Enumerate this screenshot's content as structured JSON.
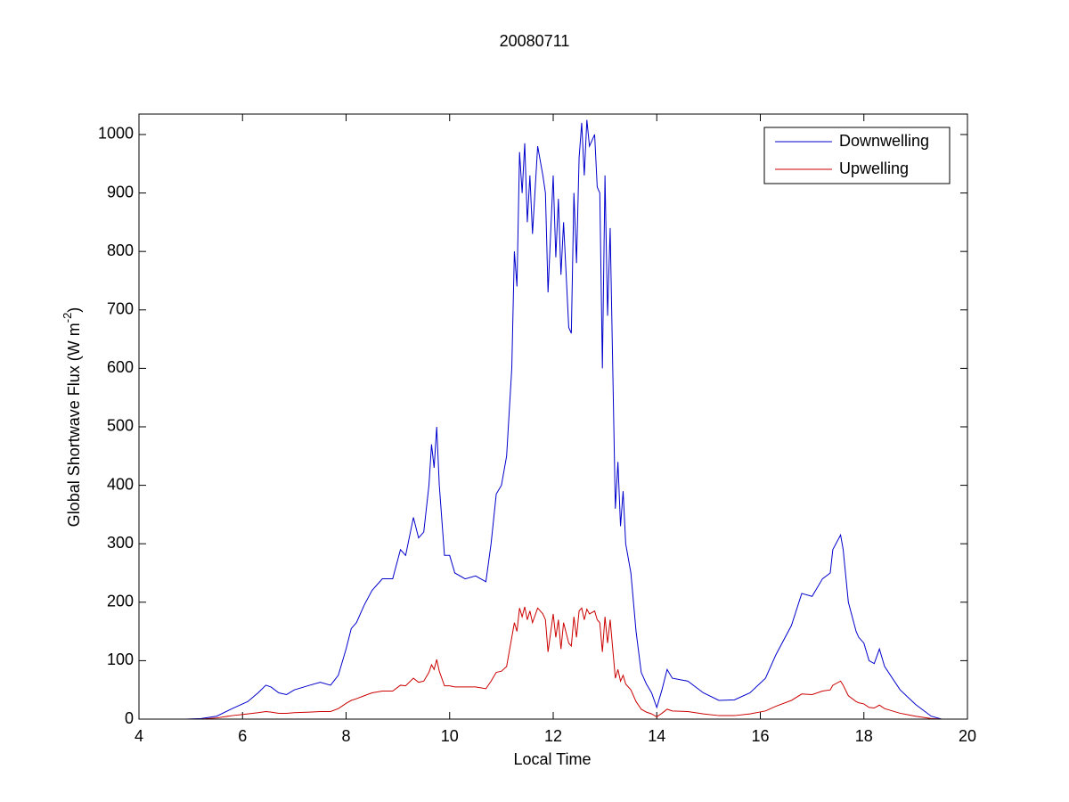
{
  "chart_data": {
    "type": "line",
    "title": "20080711",
    "xlabel": "Local Time",
    "ylabel": {
      "text": "Global Shortwave Flux (W m",
      "superscript": "-2",
      "suffix": ")"
    },
    "x": [
      4,
      4.9,
      5.2,
      5.5,
      5.8,
      6.1,
      6.3,
      6.45,
      6.55,
      6.7,
      6.85,
      7,
      7.3,
      7.5,
      7.7,
      7.85,
      8,
      8.1,
      8.2,
      8.35,
      8.5,
      8.7,
      8.9,
      9.05,
      9.15,
      9.3,
      9.4,
      9.5,
      9.6,
      9.65,
      9.7,
      9.75,
      9.8,
      9.9,
      10,
      10.1,
      10.3,
      10.5,
      10.7,
      10.8,
      10.9,
      11,
      11.1,
      11.2,
      11.25,
      11.3,
      11.35,
      11.4,
      11.45,
      11.5,
      11.55,
      11.6,
      11.7,
      11.8,
      11.85,
      11.9,
      12,
      12.05,
      12.1,
      12.15,
      12.2,
      12.3,
      12.35,
      12.4,
      12.45,
      12.5,
      12.55,
      12.6,
      12.65,
      12.7,
      12.8,
      12.85,
      12.9,
      12.95,
      13,
      13.05,
      13.1,
      13.15,
      13.2,
      13.25,
      13.3,
      13.35,
      13.4,
      13.5,
      13.6,
      13.7,
      13.8,
      13.9,
      14,
      14.1,
      14.2,
      14.3,
      14.6,
      14.9,
      15.2,
      15.5,
      15.8,
      16.1,
      16.3,
      16.6,
      16.8,
      17,
      17.2,
      17.35,
      17.4,
      17.55,
      17.6,
      17.7,
      17.85,
      17.9,
      18,
      18.1,
      18.2,
      18.3,
      18.4,
      18.7,
      19,
      19.3,
      19.5,
      19.6
    ],
    "series": [
      {
        "name": "Downwelling",
        "color": "#0000cc",
        "values": [
          0,
          0,
          1,
          5,
          18,
          30,
          45,
          58,
          55,
          45,
          42,
          50,
          58,
          63,
          58,
          75,
          120,
          155,
          165,
          195,
          220,
          240,
          240,
          290,
          280,
          345,
          310,
          320,
          400,
          470,
          430,
          500,
          400,
          280,
          280,
          250,
          240,
          245,
          235,
          300,
          385,
          400,
          450,
          600,
          800,
          740,
          970,
          900,
          985,
          850,
          930,
          830,
          980,
          930,
          900,
          730,
          930,
          790,
          890,
          760,
          850,
          670,
          660,
          900,
          780,
          960,
          1020,
          930,
          1025,
          980,
          1000,
          910,
          900,
          600,
          930,
          690,
          840,
          600,
          360,
          440,
          330,
          390,
          300,
          250,
          150,
          80,
          60,
          45,
          20,
          50,
          85,
          70,
          65,
          45,
          32,
          33,
          45,
          70,
          110,
          160,
          215,
          210,
          240,
          250,
          290,
          315,
          290,
          200,
          150,
          140,
          130,
          100,
          95,
          120,
          90,
          50,
          25,
          5,
          0,
          0
        ]
      },
      {
        "name": "Upwelling",
        "color": "#cc0000",
        "values": [
          0,
          0,
          0,
          2,
          6,
          9,
          11,
          13,
          12,
          10,
          10,
          11,
          12,
          13,
          13,
          18,
          27,
          32,
          35,
          40,
          45,
          48,
          48,
          58,
          57,
          70,
          63,
          65,
          80,
          93,
          85,
          102,
          82,
          57,
          57,
          55,
          55,
          55,
          52,
          65,
          80,
          82,
          90,
          140,
          165,
          150,
          190,
          175,
          192,
          170,
          185,
          165,
          190,
          180,
          170,
          115,
          180,
          140,
          170,
          120,
          165,
          130,
          125,
          175,
          140,
          185,
          190,
          170,
          188,
          180,
          185,
          170,
          165,
          115,
          175,
          130,
          170,
          120,
          70,
          85,
          65,
          75,
          60,
          50,
          30,
          17,
          12,
          9,
          4,
          10,
          17,
          14,
          13,
          9,
          6,
          6,
          9,
          14,
          22,
          32,
          43,
          42,
          48,
          50,
          58,
          65,
          58,
          40,
          30,
          28,
          26,
          20,
          19,
          24,
          18,
          10,
          5,
          1,
          0,
          0
        ]
      }
    ],
    "xlim": [
      4,
      20
    ],
    "xticks": [
      4,
      6,
      8,
      10,
      12,
      14,
      16,
      18,
      20
    ],
    "ylim": [
      0,
      1035
    ],
    "yticks": [
      0,
      100,
      200,
      300,
      400,
      500,
      600,
      700,
      800,
      900,
      1000
    ],
    "grid": false,
    "legend": "upper right"
  }
}
